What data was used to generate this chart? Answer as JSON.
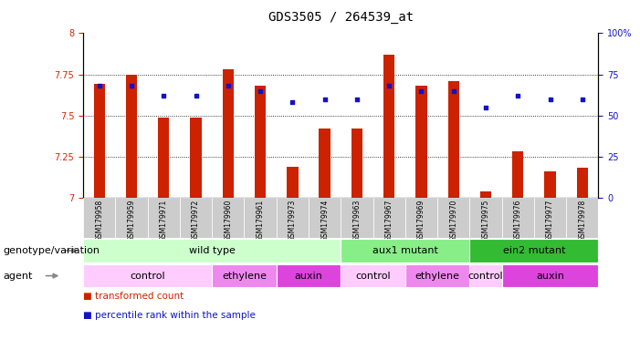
{
  "title": "GDS3505 / 264539_at",
  "samples": [
    "GSM179958",
    "GSM179959",
    "GSM179971",
    "GSM179972",
    "GSM179960",
    "GSM179961",
    "GSM179973",
    "GSM179974",
    "GSM179963",
    "GSM179967",
    "GSM179969",
    "GSM179970",
    "GSM179975",
    "GSM179976",
    "GSM179977",
    "GSM179978"
  ],
  "bar_values": [
    7.69,
    7.75,
    7.49,
    7.49,
    7.78,
    7.68,
    7.19,
    7.42,
    7.42,
    7.87,
    7.68,
    7.71,
    7.04,
    7.28,
    7.16,
    7.18
  ],
  "dot_values": [
    68,
    68,
    62,
    62,
    68,
    65,
    58,
    60,
    60,
    68,
    65,
    65,
    55,
    62,
    60,
    60
  ],
  "ylim_left": [
    7.0,
    8.0
  ],
  "ylim_right": [
    0,
    100
  ],
  "yticks_left": [
    7.0,
    7.25,
    7.5,
    7.75,
    8.0
  ],
  "ytick_labels_left": [
    "7",
    "7.25",
    "7.5",
    "7.75",
    "8"
  ],
  "yticks_right": [
    0,
    25,
    50,
    75,
    100
  ],
  "ytick_labels_right": [
    "0",
    "25",
    "50",
    "75",
    "100%"
  ],
  "grid_values": [
    7.25,
    7.5,
    7.75
  ],
  "bar_color": "#cc2200",
  "dot_color": "#1111cc",
  "genotype_groups": [
    {
      "label": "wild type",
      "start": 0,
      "end": 7,
      "color": "#ccffcc"
    },
    {
      "label": "aux1 mutant",
      "start": 8,
      "end": 11,
      "color": "#88ee88"
    },
    {
      "label": "ein2 mutant",
      "start": 12,
      "end": 15,
      "color": "#33bb33"
    }
  ],
  "agent_groups": [
    {
      "label": "control",
      "start": 0,
      "end": 3,
      "color": "#ffccff"
    },
    {
      "label": "ethylene",
      "start": 4,
      "end": 5,
      "color": "#ee88ee"
    },
    {
      "label": "auxin",
      "start": 6,
      "end": 7,
      "color": "#dd44dd"
    },
    {
      "label": "control",
      "start": 8,
      "end": 9,
      "color": "#ffccff"
    },
    {
      "label": "ethylene",
      "start": 10,
      "end": 11,
      "color": "#ee88ee"
    },
    {
      "label": "control",
      "start": 12,
      "end": 12,
      "color": "#ffccff"
    },
    {
      "label": "auxin",
      "start": 13,
      "end": 15,
      "color": "#dd44dd"
    }
  ],
  "legend_items": [
    {
      "label": "transformed count",
      "color": "#cc2200"
    },
    {
      "label": "percentile rank within the sample",
      "color": "#1111cc"
    }
  ],
  "genotype_label": "genotype/variation",
  "agent_label": "agent",
  "bar_width": 0.35,
  "tick_label_color_left": "#dd2200",
  "tick_label_color_right": "#1111cc",
  "title_fontsize": 10,
  "tick_fontsize": 7,
  "sample_fontsize": 5.5,
  "row_label_fontsize": 8,
  "group_fontsize": 8,
  "legend_fontsize": 7.5,
  "sample_bg_color": "#cccccc"
}
